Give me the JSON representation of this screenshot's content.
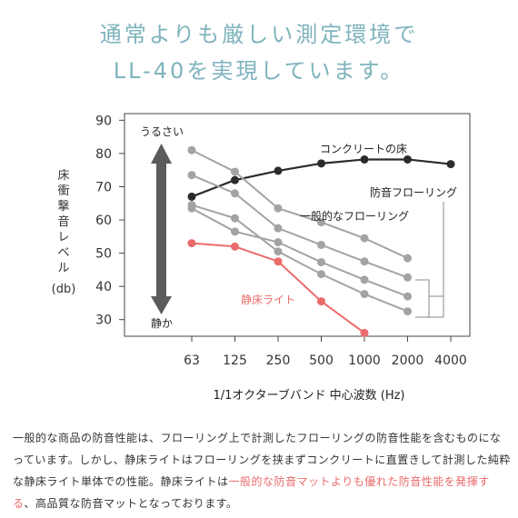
{
  "headline": {
    "line1": "通常よりも厳しい測定環境で",
    "line2": "LL-40を実現しています。"
  },
  "colors": {
    "headline": "#7fb3bd",
    "concrete": "#2b2b2b",
    "general": "#a3a3a3",
    "product": "#ea6b6b",
    "arrow": "#5b5b5b",
    "axis": "#444444"
  },
  "chart_data": {
    "type": "line",
    "ylabel": "床衝撃音レベル",
    "yunit": "(db)",
    "xlabel": "1/1オクターブバンド 中心波数 (Hz)",
    "categories": [
      "63",
      "125",
      "250",
      "500",
      "1000",
      "2000",
      "4000"
    ],
    "ylim": [
      25,
      92
    ],
    "yticks": [
      30,
      40,
      50,
      60,
      70,
      80,
      90
    ],
    "grid": false,
    "arrow_top_label": "うるさい",
    "arrow_bottom_label": "静か",
    "series": [
      {
        "name": "コンクリートの床",
        "style": "concrete",
        "values": [
          67,
          72,
          74.8,
          77,
          78.2,
          78.2,
          76.8
        ]
      },
      {
        "name": "",
        "style": "general",
        "values": [
          81,
          74.5,
          63.5,
          59.3,
          54.5,
          48.5,
          null
        ]
      },
      {
        "name": "",
        "style": "general",
        "values": [
          73.5,
          68,
          57.5,
          52.5,
          47.5,
          42.7,
          null
        ]
      },
      {
        "name": "",
        "style": "general",
        "values": [
          63.5,
          56.5,
          53.3,
          47.3,
          42,
          37,
          null
        ]
      },
      {
        "name": "",
        "style": "general",
        "values": [
          64.5,
          60.5,
          50.5,
          43.7,
          37.7,
          32.5,
          null
        ]
      },
      {
        "name": "静床ライト",
        "style": "product",
        "values": [
          53,
          52,
          47.5,
          35.5,
          26,
          null,
          null
        ]
      }
    ],
    "annotations": {
      "general_floor": "一般的なフローリング",
      "soundproof_floor": "防音フローリング"
    }
  },
  "description": {
    "part1": "一般的な商品の防音性能は、フローリング上で計測したフローリングの防音性能を含むものになっています。しかし、静床ライトはフローリングを挟まずコンクリートに直置きして計測した純粋な静床ライト単体での性能。静床ライトは",
    "highlight": "一般的な防音マットよりも優れた防音性能を発揮する",
    "part2": "、高品質な防音マットとなっております。"
  }
}
